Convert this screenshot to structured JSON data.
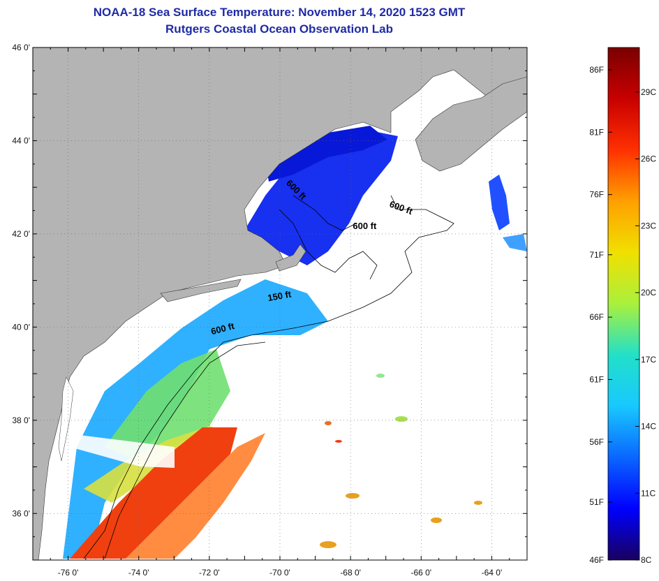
{
  "title": {
    "line1": "NOAA-18 Sea Surface Temperature:  November 14, 2020 1523 GMT",
    "line2": "Rutgers Coastal Ocean Observation Lab"
  },
  "map": {
    "lat_range": [
      35,
      46
    ],
    "lon_range": [
      -77,
      -63
    ],
    "lat_ticks": [
      {
        "value": 46,
        "label": "46 0'"
      },
      {
        "value": 44,
        "label": "44 0'"
      },
      {
        "value": 42,
        "label": "42 0'"
      },
      {
        "value": 40,
        "label": "40 0'"
      },
      {
        "value": 38,
        "label": "38 0'"
      },
      {
        "value": 36,
        "label": "36 0'"
      }
    ],
    "lon_ticks": [
      {
        "value": -76,
        "label": "-76 0'"
      },
      {
        "value": -74,
        "label": "-74 0'"
      },
      {
        "value": -72,
        "label": "-72 0'"
      },
      {
        "value": -70,
        "label": "-70 0'"
      },
      {
        "value": -68,
        "label": "-68 0'"
      },
      {
        "value": -66,
        "label": "-66 0'"
      },
      {
        "value": -64,
        "label": "-64 0'"
      }
    ],
    "contour_labels": [
      {
        "text": "600 ft",
        "lon": -69.6,
        "lat": 42.9,
        "angle": 45
      },
      {
        "text": "600 ft",
        "lon": -66.6,
        "lat": 42.5,
        "angle": 20
      },
      {
        "text": "600 ft",
        "lon": -67.6,
        "lat": 42.1,
        "angle": 0
      },
      {
        "text": "150 ft",
        "lon": -70.0,
        "lat": 40.6,
        "angle": -10
      },
      {
        "text": "600 ft",
        "lon": -71.6,
        "lat": 39.9,
        "angle": -15
      }
    ],
    "colors": {
      "land": "#b4b4b4",
      "ocean_nodata": "#ffffff",
      "title": "#1f2aa6"
    }
  },
  "colorbar": {
    "f_labels": [
      {
        "label": "86F",
        "temp_c": 30.0
      },
      {
        "label": "81F",
        "temp_c": 27.2
      },
      {
        "label": "76F",
        "temp_c": 24.4
      },
      {
        "label": "71F",
        "temp_c": 21.7
      },
      {
        "label": "66F",
        "temp_c": 18.9
      },
      {
        "label": "61F",
        "temp_c": 16.1
      },
      {
        "label": "56F",
        "temp_c": 13.3
      },
      {
        "label": "51F",
        "temp_c": 10.6
      },
      {
        "label": "46F",
        "temp_c": 7.8
      }
    ],
    "c_labels": [
      {
        "label": "29C",
        "temp_c": 29
      },
      {
        "label": "26C",
        "temp_c": 26
      },
      {
        "label": "23C",
        "temp_c": 23
      },
      {
        "label": "20C",
        "temp_c": 20
      },
      {
        "label": "17C",
        "temp_c": 17
      },
      {
        "label": "14C",
        "temp_c": 14
      },
      {
        "label": "11C",
        "temp_c": 11
      },
      {
        "label": "8C",
        "temp_c": 8
      }
    ],
    "range_c": [
      8,
      31
    ],
    "stops": [
      "#1a005f",
      "#0000ff",
      "#0a66ff",
      "#18c8ff",
      "#22e0c8",
      "#aaf03c",
      "#f0e000",
      "#ffa000",
      "#ff3000",
      "#c80000",
      "#7a0000"
    ]
  }
}
